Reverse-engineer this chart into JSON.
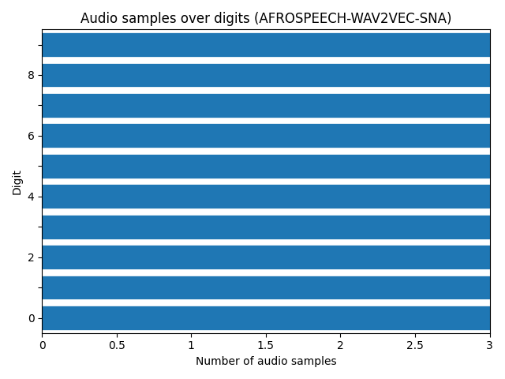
{
  "title": "Audio samples over digits (AFROSPEECH-WAV2VEC-SNA)",
  "xlabel": "Number of audio samples",
  "ylabel": "Digit",
  "digits": [
    0,
    1,
    2,
    3,
    4,
    5,
    6,
    7,
    8,
    9
  ],
  "values": [
    3,
    3,
    3,
    3,
    3,
    3,
    3,
    3,
    3,
    3
  ],
  "bar_color": "#1f77b4",
  "xlim": [
    0,
    3.0
  ],
  "ylim": [
    -0.5,
    9.5
  ],
  "xticks": [
    0.0,
    0.5,
    1.0,
    1.5,
    2.0,
    2.5,
    3.0
  ],
  "bar_height": 0.8,
  "figsize": [
    6.4,
    4.8
  ],
  "dpi": 100
}
